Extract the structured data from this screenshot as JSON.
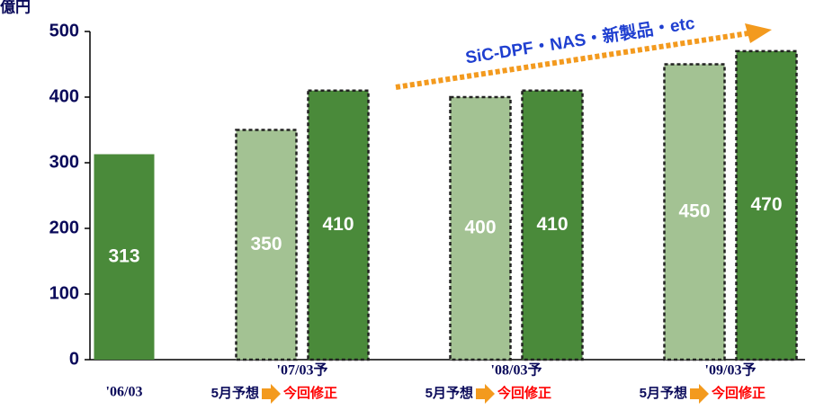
{
  "chart_data": {
    "type": "bar",
    "unit_label": "億円",
    "categories": [
      "'06/03",
      "'07/03予",
      "'08/03予",
      "'09/03予"
    ],
    "series": [
      {
        "name": "5月予想",
        "color": "#a3c293",
        "values": [
          null,
          350,
          400,
          450
        ]
      },
      {
        "name": "今回修正",
        "color": "#4a8a3a",
        "values": [
          313,
          410,
          410,
          470
        ]
      }
    ],
    "dashed": [
      false,
      true,
      true,
      true
    ],
    "ylim": [
      0,
      500
    ],
    "yticks": [
      0,
      100,
      200,
      300,
      400,
      500
    ],
    "annotation": "SiC-DPF・NAS・新製品・etc"
  }
}
